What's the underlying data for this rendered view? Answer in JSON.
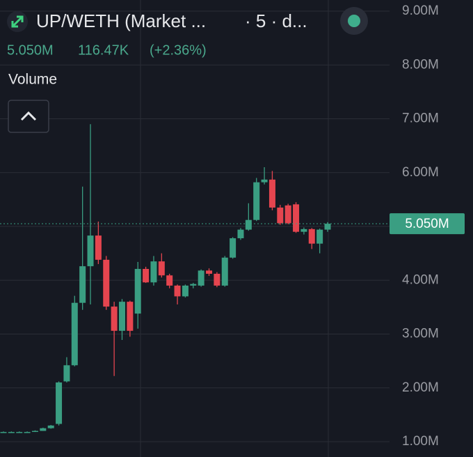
{
  "chart_data": {
    "type": "candlestick",
    "title": "UP/WETH (Market ...",
    "interval": "· 5 · d...",
    "last_text": "5.050M",
    "change_text": "116.47K",
    "change_pct_text": "(+2.36%)",
    "indicator": "Volume",
    "up_color": "#3a9e82",
    "down_color": "#e5454f",
    "grid": true,
    "ylim": [
      715000,
      9207000
    ],
    "yticks": [
      {
        "value": 1000000,
        "label": "1.00M"
      },
      {
        "value": 2000000,
        "label": "2.00M"
      },
      {
        "value": 3000000,
        "label": "3.00M"
      },
      {
        "value": 4000000,
        "label": "4.00M"
      },
      {
        "value": 5000000,
        "label": "5.00M"
      },
      {
        "value": 6000000,
        "label": "6.00M"
      },
      {
        "value": 7000000,
        "label": "7.00M"
      },
      {
        "value": 8000000,
        "label": "8.00M"
      },
      {
        "value": 9000000,
        "label": "9.00M"
      }
    ],
    "last_price": {
      "value": 5050000,
      "label": "5.050M"
    },
    "open": [
      1180000,
      1180000,
      1180000,
      1180000,
      1190000,
      1200000,
      1250000,
      1330000,
      2120000,
      2420000,
      3580000,
      4260000,
      4830000,
      4380000,
      3510000,
      3060000,
      3600000,
      3380000,
      4210000,
      3960000,
      4350000,
      4090000,
      3900000,
      3700000,
      3900000,
      3900000,
      4180000,
      4120000,
      3900000,
      4420000,
      4780000,
      4940000,
      5120000,
      5820000,
      5870000,
      5350000,
      5390000,
      5410000,
      4900000,
      4950000,
      4680000,
      4940000
    ],
    "high": [
      1190000,
      1190000,
      1190000,
      1190000,
      1210000,
      1260000,
      1310000,
      2120000,
      2570000,
      3710000,
      5740000,
      6900000,
      5090000,
      4450000,
      3600000,
      3650000,
      3620000,
      4340000,
      4250000,
      4450000,
      4500000,
      4120000,
      3920000,
      3920000,
      3950000,
      4200000,
      4220000,
      4150000,
      4450000,
      4800000,
      4970000,
      5430000,
      5900000,
      6100000,
      6030000,
      5400000,
      5420000,
      5450000,
      4980000,
      4970000,
      4960000,
      5080000
    ],
    "low": [
      1170000,
      1170000,
      1170000,
      1170000,
      1180000,
      1200000,
      1240000,
      1300000,
      2100000,
      2400000,
      3450000,
      3550000,
      4300000,
      3450000,
      2220000,
      2890000,
      2950000,
      3100000,
      3950000,
      3900000,
      4050000,
      3850000,
      3550000,
      3680000,
      3850000,
      3880000,
      4080000,
      3870000,
      3880000,
      4400000,
      4750000,
      4920000,
      5100000,
      5780000,
      5300000,
      5030000,
      5040000,
      4880000,
      4850000,
      4580000,
      4500000,
      4900000
    ],
    "close": [
      1180000,
      1180000,
      1180000,
      1180000,
      1200000,
      1250000,
      1300000,
      2100000,
      2420000,
      3580000,
      4260000,
      4830000,
      4380000,
      3510000,
      3060000,
      3600000,
      3060000,
      4210000,
      3960000,
      4350000,
      4090000,
      3900000,
      3700000,
      3900000,
      3930000,
      4180000,
      4120000,
      3900000,
      4420000,
      4780000,
      4940000,
      5120000,
      5820000,
      5870000,
      5350000,
      5060000,
      5060000,
      4900000,
      4950000,
      4680000,
      4940000,
      5050000
    ]
  }
}
